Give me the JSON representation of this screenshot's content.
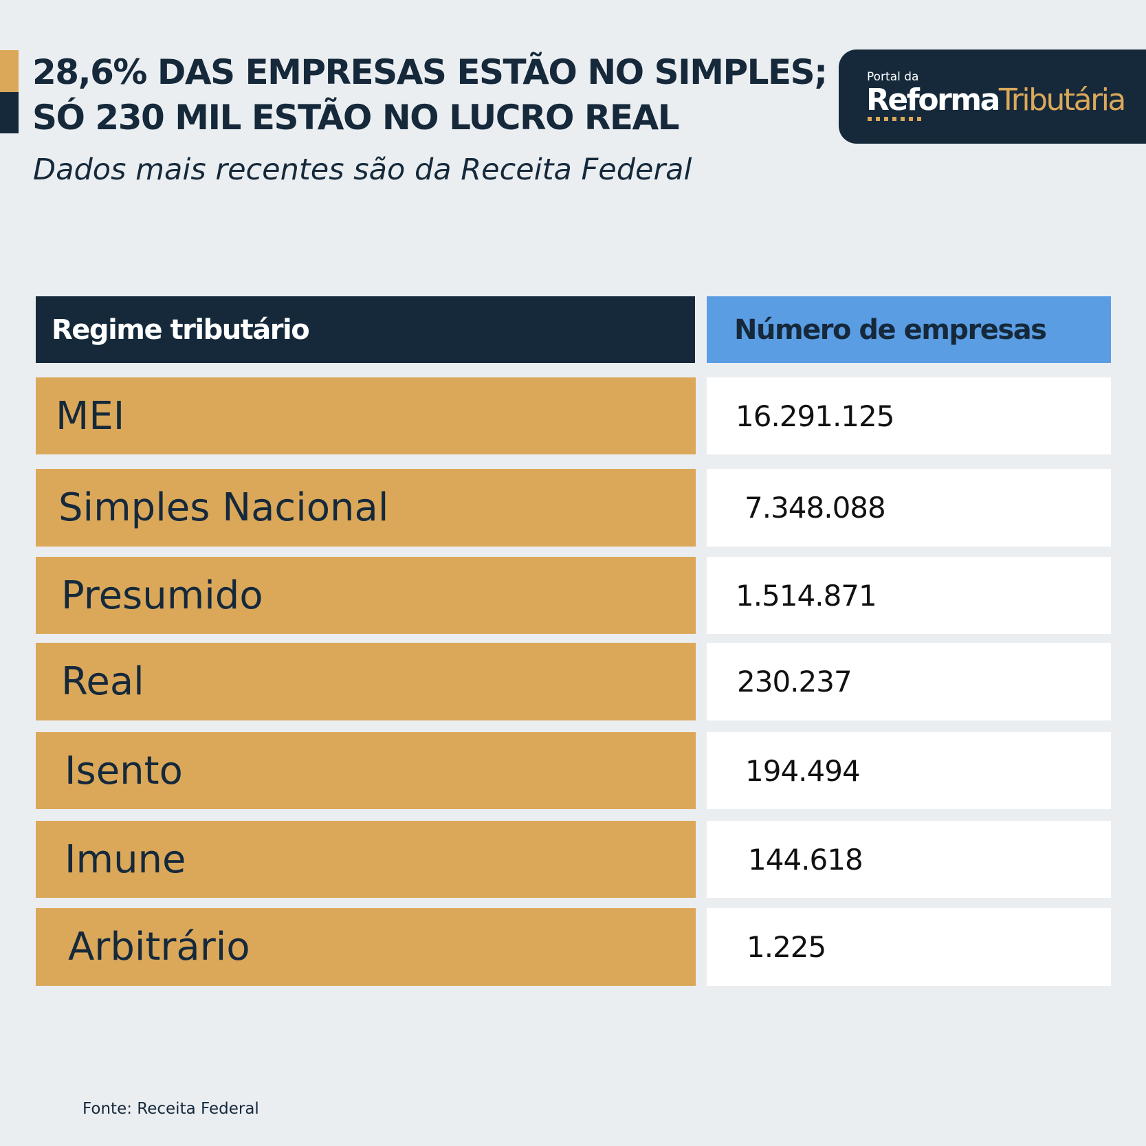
{
  "header": {
    "headline_line1": "28,6% DAS EMPRESAS ESTÃO NO SIMPLES;",
    "headline_line2": "SÓ 230 MIL ESTÃO NO LUCRO REAL",
    "subtitle": "Dados mais recentes são da Receita Federal"
  },
  "logo": {
    "small_text": "Portal da",
    "word1": "Reforma",
    "word2": "Tributária"
  },
  "colors": {
    "navy": "#15293b",
    "gold": "#dba85a",
    "blue": "#5b9de3",
    "background": "#ebeef1"
  },
  "chart_data": {
    "type": "table",
    "columns": [
      "Regime tributário",
      "Número de empresas"
    ],
    "rows": [
      {
        "regime": "MEI",
        "empresas": "16.291.125"
      },
      {
        "regime": "Simples Nacional",
        "empresas": "7.348.088"
      },
      {
        "regime": "Presumido",
        "empresas": "1.514.871"
      },
      {
        "regime": "Real",
        "empresas": "230.237"
      },
      {
        "regime": "Isento",
        "empresas": "194.494"
      },
      {
        "regime": "Imune",
        "empresas": "144.618"
      },
      {
        "regime": "Arbitrário",
        "empresas": "1.225"
      }
    ]
  },
  "footer": {
    "source": "Fonte: Receita Federal"
  }
}
